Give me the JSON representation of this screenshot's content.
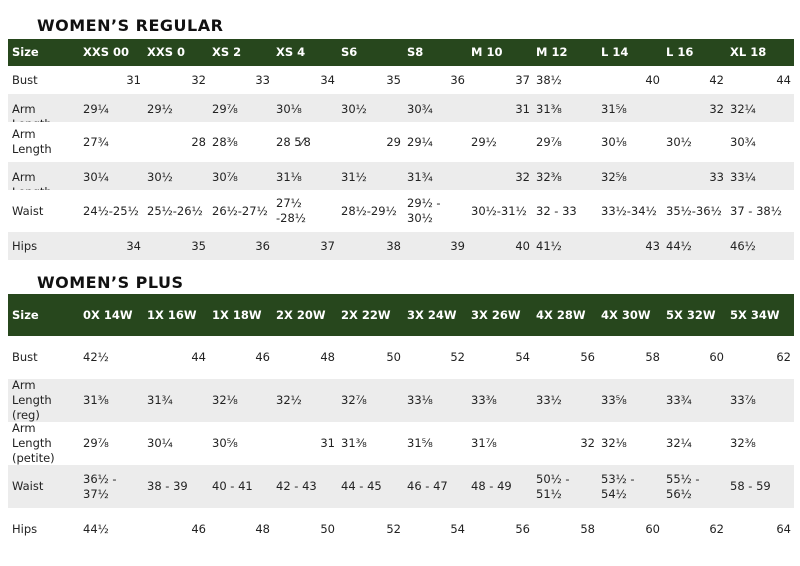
{
  "regular": {
    "title": "WOMEN’S REGULAR",
    "headers": [
      "Size",
      "XXS 00",
      "XXS 0",
      "XS 2",
      "XS 4",
      "S6",
      "S8",
      "M 10",
      "M 12",
      "L 14",
      "L 16",
      "XL 18"
    ],
    "rows": [
      {
        "label": "Bust",
        "cells": [
          "31",
          "32",
          "33",
          "34",
          "35",
          "36",
          "37",
          "38½",
          "40",
          "42",
          "44"
        ]
      },
      {
        "label": "Arm Length",
        "cells": [
          "29¼",
          "29½",
          "29⅞",
          "30⅛",
          "30½",
          "30¾",
          "31",
          "31⅜",
          "31⅝",
          "32",
          "32¼"
        ]
      },
      {
        "label": "Arm Length",
        "cells": [
          "27¾",
          "28",
          "28⅜",
          "28 5⁄8",
          "29",
          "29¼",
          "29½",
          "29⅞",
          "30⅛",
          "30½",
          "30¾"
        ]
      },
      {
        "label": "Arm Length",
        "cells": [
          "30¼",
          "30½",
          "30⅞",
          "31⅛",
          "31½",
          "31¾",
          "32",
          "32⅜",
          "32⅝",
          "33",
          "33¼"
        ]
      },
      {
        "label": "Waist",
        "cells": [
          "24½-25½",
          "25½-26½",
          "26½-27½",
          "27½ -28½",
          "28½-29½",
          "29½ - 30½",
          "30½-31½",
          "32 - 33",
          "33½-34½",
          "35½-36½",
          "37 - 38½"
        ]
      },
      {
        "label": "Hips",
        "cells": [
          "34",
          "35",
          "36",
          "37",
          "38",
          "39",
          "40",
          "41½",
          "43",
          "44½",
          "46½"
        ]
      }
    ]
  },
  "plus": {
    "title": "WOMEN’S PLUS",
    "headers": [
      "Size",
      "0X 14W",
      "1X 16W",
      "1X 18W",
      "2X 20W",
      "2X 22W",
      "3X 24W",
      "3X 26W",
      "4X 28W",
      "4X 30W",
      "5X 32W",
      "5X 34W"
    ],
    "rows": [
      {
        "label": "Bust",
        "cells": [
          "42½",
          "44",
          "46",
          "48",
          "50",
          "52",
          "54",
          "56",
          "58",
          "60",
          "62"
        ]
      },
      {
        "label": "Arm Length (reg)",
        "cells": [
          "31⅜",
          "31¾",
          "32⅛",
          "32½",
          "32⅞",
          "33⅛",
          "33⅜",
          "33½",
          "33⅝",
          "33¾",
          "33⅞"
        ]
      },
      {
        "label": "Arm Length (petite)",
        "cells": [
          "29⅞",
          "30¼",
          "30⅝",
          "31",
          "31⅜",
          "31⅝",
          "31⅞",
          "32",
          "32⅛",
          "32¼",
          "32⅜"
        ]
      },
      {
        "label": "Waist",
        "cells": [
          "36½ - 37½",
          "38 - 39",
          "40 - 41",
          "42 - 43",
          "44 - 45",
          "46 - 47",
          "48 - 49",
          "50½ - 51½",
          "53½ - 54½",
          "55½ - 56½",
          "58 - 59"
        ]
      },
      {
        "label": "Hips",
        "cells": [
          "44½",
          "46",
          "48",
          "50",
          "52",
          "54",
          "56",
          "58",
          "60",
          "62",
          "64"
        ]
      }
    ]
  }
}
